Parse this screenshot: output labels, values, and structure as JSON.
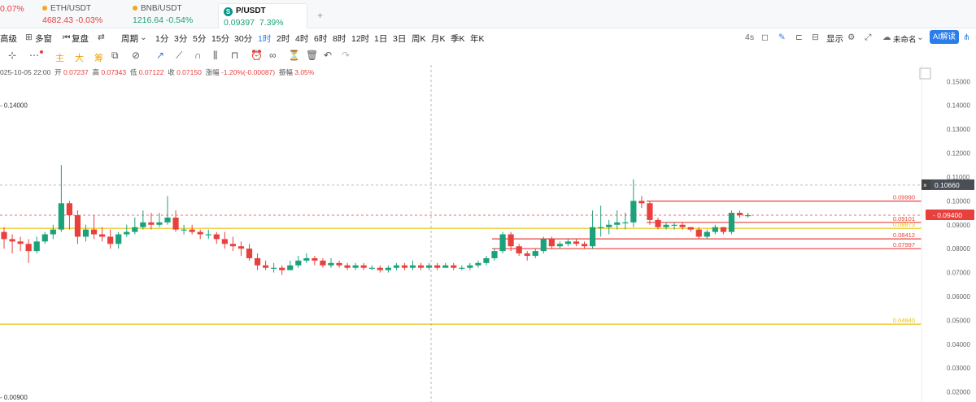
{
  "tabs": [
    {
      "name": "",
      "price": "",
      "change": "0.07%",
      "dir": "down"
    },
    {
      "name": "ETH/USDT",
      "price": "4682.43",
      "change": "-0.03%",
      "dir": "down"
    },
    {
      "name": "BNB/USDT",
      "price": "1216.64",
      "change": "-0.54%",
      "dir": "up"
    },
    {
      "name": "P/USDT",
      "price": "0.09397",
      "change": "7.39%",
      "dir": "up"
    }
  ],
  "toolbar": {
    "advanced": "高级",
    "multi_window": "多窗",
    "replay": "复盘",
    "period": "周期",
    "intervals": [
      "1分",
      "3分",
      "5分",
      "15分",
      "30分",
      "1时",
      "2时",
      "4时",
      "6时",
      "8时",
      "12时",
      "1日",
      "3日",
      "周K",
      "月K",
      "季K",
      "年K"
    ],
    "active_interval": "1时",
    "refresh": "4s",
    "display": "显示",
    "untitled": "未命名",
    "ai_button": "AI解读"
  },
  "drawing_tools": {
    "labels": [
      "主",
      "大",
      "筹"
    ]
  },
  "ohlc": {
    "time": "025-10-05 22:00",
    "open_label": "开",
    "open": "0.07237",
    "high_label": "高",
    "high": "0.07343",
    "low_label": "低",
    "low": "0.07122",
    "close_label": "收",
    "close": "0.07150",
    "change_label": "涨幅",
    "change": "-1.20%(-0.00087)",
    "amplitude_label": "振幅",
    "amplitude": "3.05%"
  },
  "chart_data": {
    "type": "candlestick",
    "y_ticks": [
      "0.15000",
      "0.14000",
      "0.13000",
      "0.12000",
      "0.11000",
      "0.10000",
      "0.09000",
      "0.08000",
      "0.07000",
      "0.06000",
      "0.05000",
      "0.04000",
      "0.03000",
      "0.02000"
    ],
    "ylim": [
      0.0175,
      0.1535
    ],
    "current_price_label": "0.09400",
    "crosshair_price_label": "0.10660",
    "left_top_label": "0.14000",
    "left_bottom_label": "0.00900",
    "horizontal_lines": [
      {
        "price": 0.0999,
        "label": "0.09990",
        "color": "#e8403d",
        "from": 0.8
      },
      {
        "price": 0.091,
        "label": "0.09101",
        "color": "#e8403d",
        "from": 0.8
      },
      {
        "price": 0.0885,
        "label": "0.08873",
        "color": "#e8c20b",
        "from": 0.0
      },
      {
        "price": 0.0841,
        "label": "0.08412",
        "color": "#e8403d",
        "from": 0.75
      },
      {
        "price": 0.08,
        "label": "0.07997",
        "color": "#e8403d",
        "from": 0.75
      },
      {
        "price": 0.0484,
        "label": "0.04840",
        "color": "#e8c20b",
        "from": 0.0
      }
    ],
    "candles": [
      [
        0.087,
        0.084,
        0.089,
        0.08
      ],
      [
        0.084,
        0.083,
        0.086,
        0.078
      ],
      [
        0.083,
        0.082,
        0.085,
        0.079
      ],
      [
        0.082,
        0.079,
        0.084,
        0.074
      ],
      [
        0.079,
        0.083,
        0.085,
        0.078
      ],
      [
        0.083,
        0.086,
        0.087,
        0.082
      ],
      [
        0.086,
        0.088,
        0.09,
        0.084
      ],
      [
        0.088,
        0.099,
        0.115,
        0.087
      ],
      [
        0.099,
        0.094,
        0.1,
        0.088
      ],
      [
        0.094,
        0.085,
        0.096,
        0.082
      ],
      [
        0.085,
        0.088,
        0.09,
        0.083
      ],
      [
        0.088,
        0.086,
        0.094,
        0.084
      ],
      [
        0.086,
        0.085,
        0.089,
        0.083
      ],
      [
        0.085,
        0.082,
        0.088,
        0.08
      ],
      [
        0.082,
        0.086,
        0.087,
        0.08
      ],
      [
        0.086,
        0.087,
        0.09,
        0.085
      ],
      [
        0.087,
        0.089,
        0.093,
        0.086
      ],
      [
        0.089,
        0.091,
        0.096,
        0.088
      ],
      [
        0.091,
        0.09,
        0.095,
        0.088
      ],
      [
        0.09,
        0.091,
        0.095,
        0.089
      ],
      [
        0.091,
        0.093,
        0.102,
        0.09
      ],
      [
        0.093,
        0.088,
        0.096,
        0.087
      ],
      [
        0.088,
        0.088,
        0.09,
        0.086
      ],
      [
        0.088,
        0.087,
        0.09,
        0.086
      ],
      [
        0.087,
        0.086,
        0.088,
        0.084
      ],
      [
        0.086,
        0.086,
        0.088,
        0.084
      ],
      [
        0.086,
        0.084,
        0.087,
        0.082
      ],
      [
        0.084,
        0.082,
        0.087,
        0.08
      ],
      [
        0.082,
        0.081,
        0.085,
        0.079
      ],
      [
        0.081,
        0.08,
        0.083,
        0.077
      ],
      [
        0.08,
        0.076,
        0.082,
        0.075
      ],
      [
        0.076,
        0.073,
        0.078,
        0.071
      ],
      [
        0.073,
        0.072,
        0.075,
        0.071
      ],
      [
        0.072,
        0.072,
        0.074,
        0.07
      ],
      [
        0.072,
        0.071,
        0.073,
        0.069
      ],
      [
        0.071,
        0.073,
        0.075,
        0.071
      ],
      [
        0.073,
        0.075,
        0.077,
        0.072
      ],
      [
        0.075,
        0.076,
        0.078,
        0.074
      ],
      [
        0.076,
        0.075,
        0.077,
        0.073
      ],
      [
        0.075,
        0.073,
        0.076,
        0.072
      ],
      [
        0.073,
        0.074,
        0.076,
        0.072
      ],
      [
        0.074,
        0.073,
        0.075,
        0.072
      ],
      [
        0.073,
        0.072,
        0.074,
        0.071
      ],
      [
        0.072,
        0.073,
        0.074,
        0.071
      ],
      [
        0.073,
        0.072,
        0.074,
        0.071
      ],
      [
        0.072,
        0.072,
        0.073,
        0.071
      ],
      [
        0.072,
        0.071,
        0.073,
        0.07
      ],
      [
        0.071,
        0.072,
        0.073,
        0.07
      ],
      [
        0.072,
        0.073,
        0.074,
        0.071
      ],
      [
        0.073,
        0.072,
        0.074,
        0.071
      ],
      [
        0.072,
        0.073,
        0.075,
        0.071
      ],
      [
        0.073,
        0.072,
        0.074,
        0.071
      ],
      [
        0.072,
        0.073,
        0.074,
        0.071
      ],
      [
        0.073,
        0.072,
        0.074,
        0.071
      ],
      [
        0.072,
        0.073,
        0.074,
        0.072
      ],
      [
        0.073,
        0.072,
        0.074,
        0.071
      ],
      [
        0.072,
        0.072,
        0.073,
        0.071
      ],
      [
        0.072,
        0.073,
        0.074,
        0.071
      ],
      [
        0.073,
        0.074,
        0.075,
        0.072
      ],
      [
        0.074,
        0.076,
        0.077,
        0.073
      ],
      [
        0.076,
        0.079,
        0.08,
        0.075
      ],
      [
        0.079,
        0.086,
        0.087,
        0.078
      ],
      [
        0.086,
        0.081,
        0.087,
        0.079
      ],
      [
        0.081,
        0.078,
        0.082,
        0.077
      ],
      [
        0.078,
        0.077,
        0.079,
        0.075
      ],
      [
        0.077,
        0.079,
        0.08,
        0.076
      ],
      [
        0.079,
        0.084,
        0.085,
        0.078
      ],
      [
        0.084,
        0.081,
        0.085,
        0.08
      ],
      [
        0.081,
        0.082,
        0.083,
        0.08
      ],
      [
        0.082,
        0.083,
        0.084,
        0.081
      ],
      [
        0.083,
        0.082,
        0.084,
        0.081
      ],
      [
        0.082,
        0.081,
        0.083,
        0.08
      ],
      [
        0.081,
        0.089,
        0.096,
        0.08
      ],
      [
        0.089,
        0.089,
        0.098,
        0.085
      ],
      [
        0.089,
        0.09,
        0.092,
        0.086
      ],
      [
        0.09,
        0.091,
        0.096,
        0.088
      ],
      [
        0.091,
        0.091,
        0.095,
        0.088
      ],
      [
        0.091,
        0.1,
        0.109,
        0.089
      ],
      [
        0.1,
        0.099,
        0.102,
        0.097
      ],
      [
        0.099,
        0.092,
        0.1,
        0.09
      ],
      [
        0.092,
        0.089,
        0.093,
        0.088
      ],
      [
        0.089,
        0.09,
        0.091,
        0.088
      ],
      [
        0.09,
        0.09,
        0.091,
        0.088
      ],
      [
        0.09,
        0.089,
        0.091,
        0.088
      ],
      [
        0.089,
        0.088,
        0.089,
        0.087
      ],
      [
        0.088,
        0.085,
        0.089,
        0.084
      ],
      [
        0.085,
        0.087,
        0.088,
        0.084
      ],
      [
        0.087,
        0.089,
        0.09,
        0.086
      ],
      [
        0.089,
        0.087,
        0.089,
        0.086
      ],
      [
        0.087,
        0.095,
        0.096,
        0.086
      ],
      [
        0.095,
        0.094,
        0.096,
        0.093
      ],
      [
        0.094,
        0.094,
        0.095,
        0.093
      ]
    ]
  }
}
